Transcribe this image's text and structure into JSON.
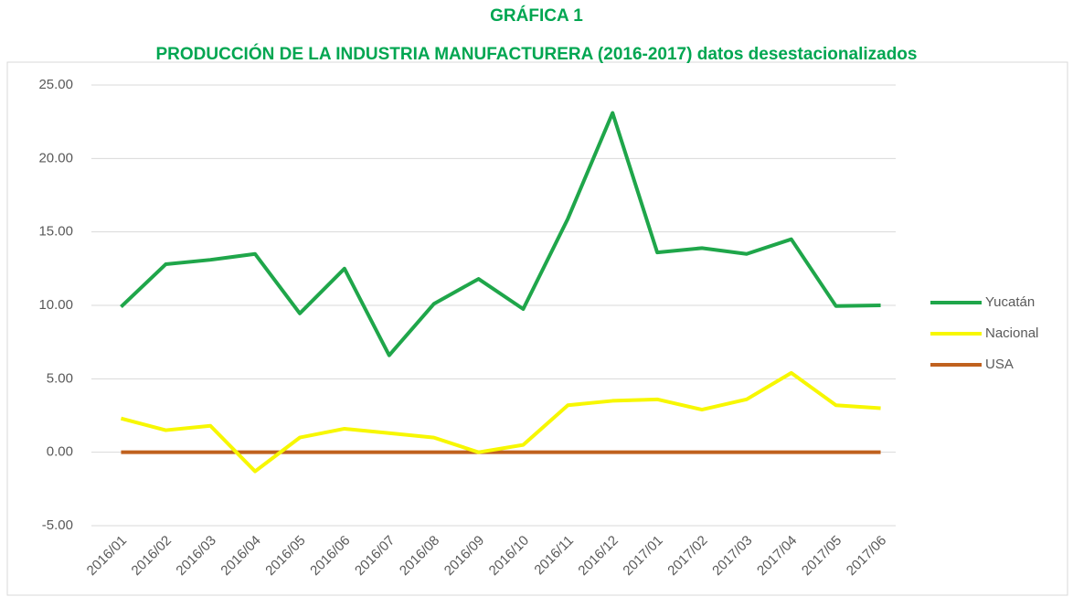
{
  "chart_data": {
    "type": "line",
    "title": "GRÁFICA 1",
    "subtitle": "PRODUCCIÓN DE LA INDUSTRIA MANUFACTURERA (2016-2017) datos desestacionalizados",
    "categories": [
      "2016/01",
      "2016/02",
      "2016/03",
      "2016/04",
      "2016/05",
      "2016/06",
      "2016/07",
      "2016/08",
      "2016/09",
      "2016/10",
      "2016/11",
      "2016/12",
      "2017/01",
      "2017/02",
      "2017/03",
      "2017/04",
      "2017/05",
      "2017/06"
    ],
    "series": [
      {
        "name": "Yucatán",
        "color": "#1fa64a",
        "values": [
          9.9,
          12.8,
          13.1,
          13.5,
          9.45,
          12.5,
          6.6,
          10.1,
          11.8,
          9.75,
          15.9,
          23.1,
          13.6,
          13.9,
          13.5,
          14.5,
          9.95,
          10.0
        ]
      },
      {
        "name": "Nacional",
        "color": "#f7f700",
        "values": [
          2.3,
          1.5,
          1.8,
          -1.3,
          1.0,
          1.6,
          1.3,
          1.0,
          0.0,
          0.5,
          3.2,
          3.5,
          3.6,
          2.9,
          3.6,
          5.4,
          3.2,
          3.0
        ]
      },
      {
        "name": "USA",
        "color": "#c0611e",
        "values": [
          0,
          0,
          0,
          0,
          0,
          0,
          0,
          0,
          0,
          0,
          0,
          0,
          0,
          0,
          0,
          0,
          0,
          0
        ]
      }
    ],
    "ylim": [
      -5,
      25
    ],
    "yticks": [
      {
        "value": -5,
        "label": "-5.00"
      },
      {
        "value": 0,
        "label": "0.00"
      },
      {
        "value": 5,
        "label": "5.00"
      },
      {
        "value": 10,
        "label": "10.00"
      },
      {
        "value": 15,
        "label": "15.00"
      },
      {
        "value": 20,
        "label": "20.00"
      },
      {
        "value": 25,
        "label": "25.00"
      }
    ],
    "grid": true,
    "legend": "right"
  }
}
